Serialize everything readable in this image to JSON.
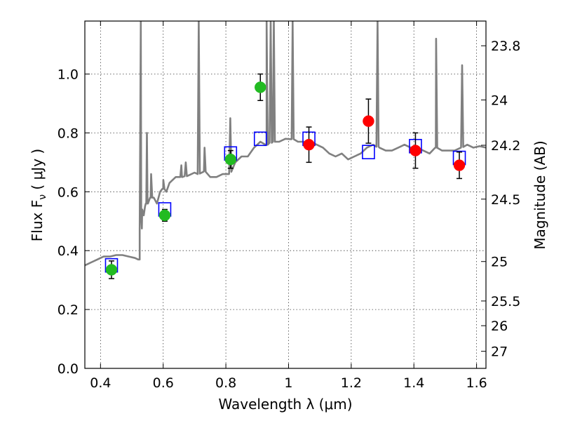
{
  "chart_data": {
    "type": "scatter",
    "xlabel": "Wavelength  λ (μm)",
    "ylabel": "Flux  F",
    "ylabel_sub": "ν",
    "ylabel_unit": "  ( μJy )",
    "ylabel_right": "Magnitude (AB)",
    "xlim": [
      0.35,
      1.63
    ],
    "ylim": [
      0.0,
      1.18
    ],
    "grid": true,
    "x_ticks": [
      {
        "value": 0.4,
        "label": "0.4"
      },
      {
        "value": 0.6,
        "label": "0.6"
      },
      {
        "value": 0.8,
        "label": "0.8"
      },
      {
        "value": 1.0,
        "label": "1"
      },
      {
        "value": 1.2,
        "label": "1.2"
      },
      {
        "value": 1.4,
        "label": "1.4"
      },
      {
        "value": 1.6,
        "label": "1.6"
      }
    ],
    "y_ticks": [
      {
        "value": 0.0,
        "label": "0.0"
      },
      {
        "value": 0.2,
        "label": "0.2"
      },
      {
        "value": 0.4,
        "label": "0.4"
      },
      {
        "value": 0.6,
        "label": "0.6"
      },
      {
        "value": 0.8,
        "label": "0.8"
      },
      {
        "value": 1.0,
        "label": "1.0"
      }
    ],
    "right_ticks": [
      {
        "flux": 1.096,
        "label": "23.8"
      },
      {
        "flux": 0.912,
        "label": "24"
      },
      {
        "flux": 0.758,
        "label": "24.2"
      },
      {
        "flux": 0.575,
        "label": "24.5"
      },
      {
        "flux": 0.363,
        "label": "25"
      },
      {
        "flux": 0.229,
        "label": "25.5"
      },
      {
        "flux": 0.145,
        "label": "26"
      },
      {
        "flux": 0.058,
        "label": "27"
      }
    ],
    "colors": {
      "model": "#808080",
      "model_photometry": "#0000ff",
      "green_points": "#22bb22",
      "red_points": "#ff0000",
      "error_bars": "#000000"
    },
    "series": [
      {
        "kind": "model_spectrum",
        "x": [
          0.35,
          0.37,
          0.39,
          0.41,
          0.43,
          0.45,
          0.47,
          0.49,
          0.51,
          0.52,
          0.525,
          0.53,
          0.533,
          0.538,
          0.542,
          0.546,
          0.55,
          0.56,
          0.57,
          0.58,
          0.59,
          0.6,
          0.61,
          0.62,
          0.64,
          0.66,
          0.68,
          0.7,
          0.71,
          0.73,
          0.75,
          0.77,
          0.79,
          0.81,
          0.83,
          0.85,
          0.87,
          0.89,
          0.91,
          0.93,
          0.95,
          0.97,
          0.99,
          1.01,
          1.03,
          1.05,
          1.07,
          1.09,
          1.11,
          1.13,
          1.15,
          1.17,
          1.19,
          1.21,
          1.23,
          1.25,
          1.27,
          1.29,
          1.31,
          1.33,
          1.35,
          1.37,
          1.39,
          1.41,
          1.43,
          1.45,
          1.47,
          1.49,
          1.51,
          1.53,
          1.55,
          1.57,
          1.59,
          1.61,
          1.63
        ],
        "y": [
          0.35,
          0.36,
          0.37,
          0.38,
          0.38,
          0.385,
          0.385,
          0.38,
          0.375,
          0.37,
          0.37,
          0.52,
          0.54,
          0.52,
          0.55,
          0.56,
          0.56,
          0.58,
          0.58,
          0.56,
          0.6,
          0.61,
          0.6,
          0.63,
          0.65,
          0.65,
          0.655,
          0.665,
          0.66,
          0.67,
          0.65,
          0.65,
          0.66,
          0.66,
          0.7,
          0.72,
          0.72,
          0.75,
          0.77,
          0.76,
          0.77,
          0.77,
          0.78,
          0.78,
          0.77,
          0.77,
          0.77,
          0.76,
          0.75,
          0.73,
          0.72,
          0.73,
          0.71,
          0.72,
          0.73,
          0.75,
          0.76,
          0.75,
          0.74,
          0.74,
          0.75,
          0.76,
          0.75,
          0.75,
          0.74,
          0.73,
          0.75,
          0.74,
          0.74,
          0.74,
          0.75,
          0.76,
          0.75,
          0.755,
          0.75
        ],
        "emission_lines": [
          {
            "x": 0.5285,
            "peak": 1.18
          },
          {
            "x": 0.548,
            "peak": 0.8
          },
          {
            "x": 0.5615,
            "peak": 0.66
          },
          {
            "x": 0.6005,
            "peak": 0.64
          },
          {
            "x": 0.658,
            "peak": 0.69
          },
          {
            "x": 0.672,
            "peak": 0.7
          },
          {
            "x": 0.7135,
            "peak": 1.18
          },
          {
            "x": 0.732,
            "peak": 0.75
          },
          {
            "x": 0.814,
            "peak": 0.85
          },
          {
            "x": 0.93,
            "peak": 1.18
          },
          {
            "x": 0.943,
            "peak": 1.18
          },
          {
            "x": 0.953,
            "peak": 1.18
          },
          {
            "x": 1.013,
            "peak": 1.18
          },
          {
            "x": 1.284,
            "peak": 1.18
          },
          {
            "x": 1.471,
            "peak": 1.12
          },
          {
            "x": 1.554,
            "peak": 1.03
          }
        ]
      },
      {
        "kind": "model_photometry",
        "x": [
          0.435,
          0.605,
          0.815,
          0.91,
          1.065,
          1.255,
          1.405,
          1.545
        ],
        "y": [
          0.35,
          0.54,
          0.73,
          0.78,
          0.78,
          0.735,
          0.755,
          0.715
        ]
      },
      {
        "kind": "observed",
        "color": "green",
        "x": [
          0.435,
          0.605,
          0.815,
          0.91
        ],
        "y": [
          0.335,
          0.52,
          0.71,
          0.955
        ],
        "err": [
          0.03,
          0.02,
          0.03,
          0.045
        ]
      },
      {
        "kind": "observed",
        "color": "red",
        "x": [
          1.065,
          1.255,
          1.405,
          1.545
        ],
        "y": [
          0.76,
          0.84,
          0.74,
          0.69
        ],
        "err": [
          0.06,
          0.075,
          0.06,
          0.045
        ]
      }
    ]
  }
}
